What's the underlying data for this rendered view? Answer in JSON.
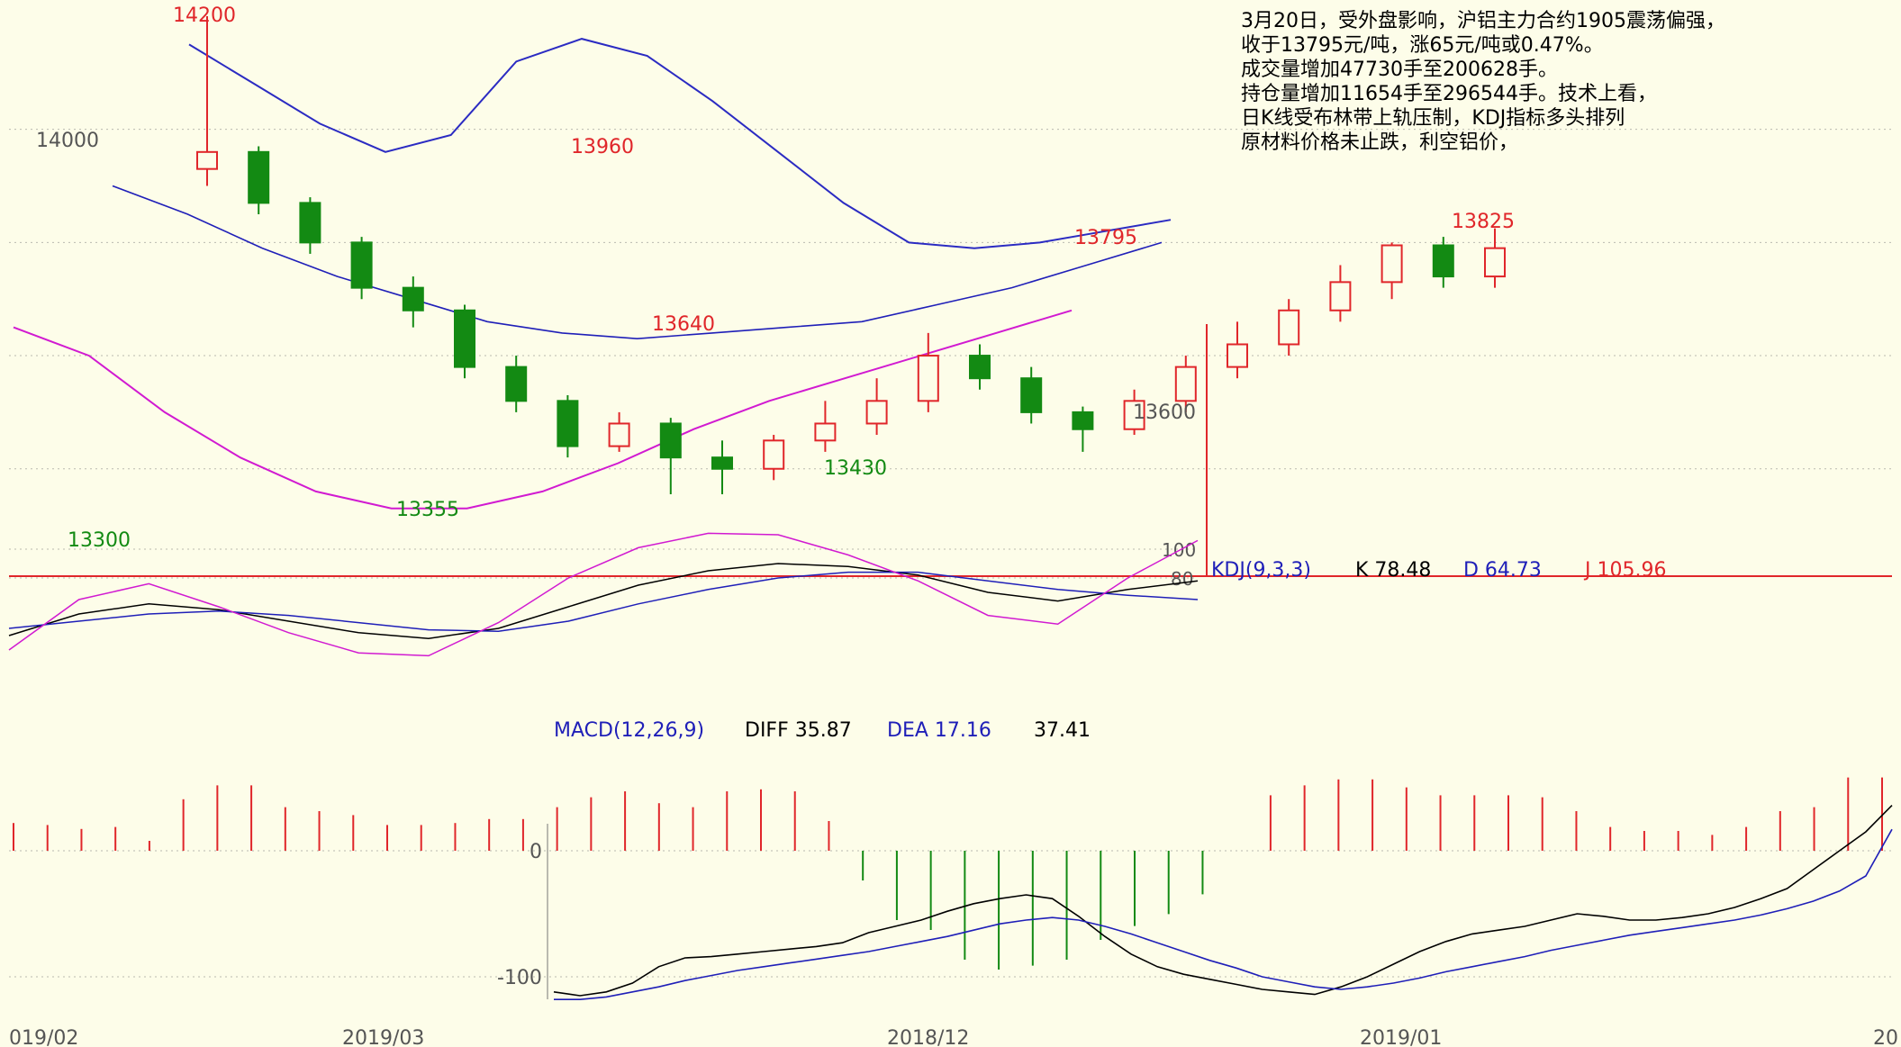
{
  "colors": {
    "background": "#fdfde9",
    "up": "#e0262a",
    "down": "#138a13",
    "ma": "#1f1fb8",
    "upper_band": "#2b2bc2",
    "lower_band": "#d11ad1",
    "grid": "#b9b9b0",
    "separator": "#e0262a",
    "black": "#000000"
  },
  "annotation": [
    "3月20日，受外盘影响，沪铝主力合约1905震荡偏强，",
    "收于13795元/吨，涨65元/吨或0.47%。",
    "成交量增加47730手至200628手。",
    "持仓量增加11654手至296544手。技术上看，",
    "日K线受布林带上轨压制，KDJ指标多头排列",
    "原材料价格未止跌，利空铝价，"
  ],
  "chart_data": [
    {
      "type": "candlestick",
      "panel": "price",
      "price_labels": [
        {
          "text": "14200",
          "kind": "high"
        },
        {
          "text": "14000",
          "kind": "axis"
        },
        {
          "text": "13960",
          "kind": "high"
        },
        {
          "text": "13795",
          "kind": "high"
        },
        {
          "text": "13825",
          "kind": "high"
        },
        {
          "text": "13640",
          "kind": "high"
        },
        {
          "text": "13600",
          "kind": "axis"
        },
        {
          "text": "13430",
          "kind": "low"
        },
        {
          "text": "13355",
          "kind": "low"
        },
        {
          "text": "13300",
          "kind": "low"
        }
      ],
      "candles": [
        {
          "o": 13930,
          "c": 13960,
          "h": 14200,
          "l": 13900
        },
        {
          "o": 13960,
          "c": 13870,
          "h": 13970,
          "l": 13850
        },
        {
          "o": 13870,
          "c": 13800,
          "h": 13880,
          "l": 13780
        },
        {
          "o": 13800,
          "c": 13720,
          "h": 13810,
          "l": 13700
        },
        {
          "o": 13720,
          "c": 13680,
          "h": 13740,
          "l": 13650
        },
        {
          "o": 13680,
          "c": 13580,
          "h": 13690,
          "l": 13560
        },
        {
          "o": 13580,
          "c": 13520,
          "h": 13600,
          "l": 13500
        },
        {
          "o": 13520,
          "c": 13440,
          "h": 13530,
          "l": 13420
        },
        {
          "o": 13440,
          "c": 13480,
          "h": 13500,
          "l": 13430
        },
        {
          "o": 13480,
          "c": 13420,
          "h": 13490,
          "l": 13355
        },
        {
          "o": 13420,
          "c": 13400,
          "h": 13450,
          "l": 13355
        },
        {
          "o": 13400,
          "c": 13450,
          "h": 13460,
          "l": 13380
        },
        {
          "o": 13450,
          "c": 13480,
          "h": 13520,
          "l": 13430
        },
        {
          "o": 13480,
          "c": 13520,
          "h": 13560,
          "l": 13460
        },
        {
          "o": 13520,
          "c": 13600,
          "h": 13640,
          "l": 13500
        },
        {
          "o": 13600,
          "c": 13560,
          "h": 13620,
          "l": 13540
        },
        {
          "o": 13560,
          "c": 13500,
          "h": 13580,
          "l": 13480
        },
        {
          "o": 13500,
          "c": 13470,
          "h": 13510,
          "l": 13430
        },
        {
          "o": 13470,
          "c": 13520,
          "h": 13540,
          "l": 13460
        },
        {
          "o": 13520,
          "c": 13580,
          "h": 13600,
          "l": 13500
        },
        {
          "o": 13580,
          "c": 13620,
          "h": 13660,
          "l": 13560
        },
        {
          "o": 13620,
          "c": 13680,
          "h": 13700,
          "l": 13600
        },
        {
          "o": 13680,
          "c": 13730,
          "h": 13760,
          "l": 13660
        },
        {
          "o": 13730,
          "c": 13795,
          "h": 13800,
          "l": 13700
        },
        {
          "o": 13795,
          "c": 13740,
          "h": 13810,
          "l": 13720
        },
        {
          "o": 13740,
          "c": 13790,
          "h": 13825,
          "l": 13720
        }
      ],
      "upper_band": [
        14150,
        14080,
        14010,
        13960,
        13990,
        14120,
        14160,
        14130,
        14050,
        13960,
        13870,
        13800,
        13790,
        13800,
        13820,
        13840
      ],
      "ma": [
        13900,
        13850,
        13790,
        13740,
        13700,
        13660,
        13640,
        13630,
        13640,
        13650,
        13660,
        13690,
        13720,
        13760,
        13800
      ],
      "lower_band": [
        13650,
        13600,
        13500,
        13420,
        13360,
        13330,
        13330,
        13360,
        13410,
        13470,
        13520,
        13560,
        13600,
        13640,
        13680
      ]
    },
    {
      "type": "line",
      "panel": "kdj",
      "label": "KDJ(9,3,3)",
      "readout": {
        "k": "K 78.48",
        "d": "D 64.73",
        "j": "J 105.96"
      },
      "axis_labels": [
        "100",
        "80"
      ],
      "k": [
        40,
        55,
        62,
        58,
        50,
        42,
        38,
        45,
        60,
        75,
        85,
        90,
        88,
        82,
        70,
        64,
        72,
        78
      ],
      "d": [
        45,
        50,
        55,
        57,
        54,
        49,
        44,
        43,
        50,
        62,
        72,
        80,
        84,
        84,
        78,
        72,
        68,
        65
      ],
      "j": [
        30,
        65,
        76,
        60,
        42,
        28,
        26,
        49,
        80,
        101,
        111,
        110,
        96,
        78,
        54,
        48,
        80,
        106
      ]
    },
    {
      "type": "bar",
      "panel": "macd",
      "label": "MACD(12,26,9)",
      "readout": {
        "diff": "DIFF 35.87",
        "dea": "DEA 17.16",
        "macd": "37.41"
      },
      "axis_labels": [
        "0",
        "-100"
      ],
      "histogram": [
        14,
        13,
        11,
        12,
        5,
        26,
        33,
        33,
        22,
        20,
        18,
        13,
        13,
        14,
        16,
        16,
        22,
        27,
        30,
        24,
        22,
        30,
        31,
        30,
        15,
        -15,
        -35,
        -40,
        -55,
        -60,
        -58,
        -55,
        -45,
        -38,
        -32,
        -22,
        0,
        28,
        33,
        36,
        36,
        32,
        28,
        28,
        28,
        27,
        20,
        12,
        10,
        10,
        8,
        12,
        20,
        22,
        37,
        37
      ],
      "diff": [
        -112,
        -115,
        -112,
        -105,
        -92,
        -85,
        -84,
        -82,
        -80,
        -78,
        -76,
        -73,
        -65,
        -60,
        -55,
        -48,
        -42,
        -38,
        -35,
        -38,
        -52,
        -68,
        -82,
        -92,
        -98,
        -102,
        -106,
        -110,
        -112,
        -114,
        -108,
        -100,
        -90,
        -80,
        -72,
        -66,
        -63,
        -60,
        -55,
        -50,
        -52,
        -55,
        -55,
        -53,
        -50,
        -45,
        -38,
        -30,
        -15,
        0,
        15,
        36
      ],
      "dea": [
        -118,
        -118,
        -116,
        -112,
        -108,
        -103,
        -99,
        -95,
        -92,
        -89,
        -86,
        -83,
        -80,
        -76,
        -72,
        -68,
        -63,
        -58,
        -55,
        -53,
        -55,
        -60,
        -66,
        -73,
        -80,
        -87,
        -93,
        -100,
        -104,
        -108,
        -110,
        -108,
        -105,
        -101,
        -96,
        -92,
        -88,
        -84,
        -79,
        -75,
        -71,
        -67,
        -64,
        -61,
        -58,
        -55,
        -51,
        -46,
        -40,
        -32,
        -20,
        17
      ]
    }
  ],
  "date_labels": [
    "019/02",
    "2019/03",
    "2018/12",
    "2019/01",
    "20"
  ]
}
